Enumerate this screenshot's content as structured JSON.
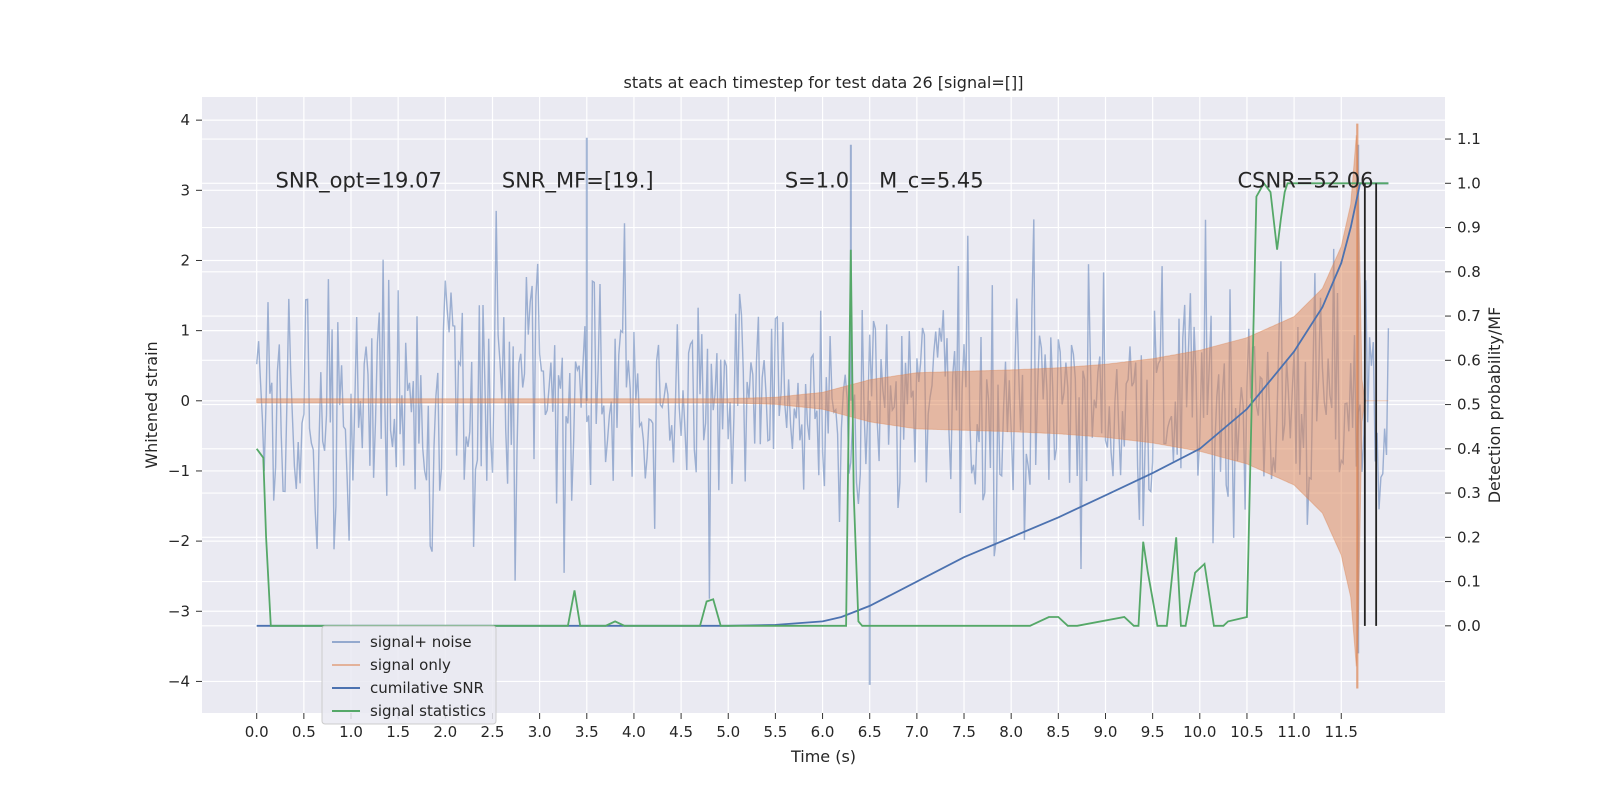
{
  "chart_data": {
    "type": "line",
    "title": "stats at each timestep for test data 26 [signal=[]]",
    "xlabel": "Time (s)",
    "ylabel": "Whitened strain",
    "ylabel_right": "Detection probability/MF",
    "xlim": [
      -0.58,
      12.6
    ],
    "ylim_left": [
      -4.45,
      4.33
    ],
    "ylim_right": [
      -0.197,
      1.195
    ],
    "x_ticks": [
      0.0,
      0.5,
      1.0,
      1.5,
      2.0,
      2.5,
      3.0,
      3.5,
      4.0,
      4.5,
      5.0,
      5.5,
      6.0,
      6.5,
      7.0,
      7.5,
      8.0,
      8.5,
      9.0,
      9.5,
      10.0,
      10.5,
      11.0,
      11.5
    ],
    "x_tick_labels": [
      "0.0",
      "0.5",
      "1.0",
      "1.5",
      "2.0",
      "2.5",
      "3.0",
      "3.5",
      "4.0",
      "4.5",
      "5.0",
      "5.5",
      "6.0",
      "6.5",
      "7.0",
      "7.5",
      "8.0",
      "8.5",
      "9.0",
      "9.5",
      "10.0",
      "10.5",
      "11.0",
      "11.5"
    ],
    "y_ticks_left": [
      4,
      3,
      2,
      1,
      0,
      -1,
      -2,
      -3,
      -4
    ],
    "y_tick_labels_left": [
      "4",
      "3",
      "2",
      "1",
      "0",
      "−1",
      "−2",
      "−3",
      "−4"
    ],
    "y_ticks_right": [
      1.1,
      1.0,
      0.9,
      0.8,
      0.7,
      0.6,
      0.5,
      0.4,
      0.3,
      0.2,
      0.1,
      0.0
    ],
    "y_tick_labels_right": [
      "1.1",
      "1.0",
      "0.9",
      "0.8",
      "0.7",
      "0.6",
      "0.5",
      "0.4",
      "0.3",
      "0.2",
      "0.1",
      "0.0"
    ],
    "grid": true,
    "legend_placement": "lower-left",
    "background": "#eaeaf2",
    "annotations": [
      {
        "text": "SNR_opt=19.07",
        "x": 0.2,
        "y": 3.1
      },
      {
        "text": "SNR_MF=[19.]",
        "x": 2.6,
        "y": 3.1
      },
      {
        "text": "S=1.0",
        "x": 5.6,
        "y": 3.1
      },
      {
        "text": "M_c=5.45",
        "x": 6.6,
        "y": 3.1
      },
      {
        "text": "CSNR=52.06",
        "x": 10.4,
        "y": 3.1
      }
    ],
    "series": [
      {
        "name": "signal+ noise",
        "axis": "left",
        "color": "#4c72b0",
        "opacity": 0.5,
        "kind": "noise-band",
        "x_range": [
          0.0,
          12.0
        ],
        "sample_spacing": 0.02,
        "typical_amplitude": 1.8,
        "peak_values": [
          {
            "x": 3.5,
            "y": 3.75
          },
          {
            "x": 6.3,
            "y": 3.65
          },
          {
            "x": 6.5,
            "y": -4.05
          },
          {
            "x": 11.68,
            "y": 3.65
          },
          {
            "x": 11.68,
            "y": -3.6
          }
        ]
      },
      {
        "name": "signal only",
        "axis": "left",
        "color": "#dd8452",
        "opacity": 0.5,
        "kind": "chirp-envelope",
        "envelope": {
          "x": [
            0.0,
            5.0,
            5.5,
            6.0,
            6.5,
            7.0,
            7.5,
            8.0,
            8.5,
            9.0,
            9.5,
            10.0,
            10.5,
            11.0,
            11.3,
            11.5,
            11.6,
            11.67,
            11.72,
            11.75,
            12.0
          ],
          "y": [
            0.03,
            0.03,
            0.05,
            0.12,
            0.3,
            0.4,
            0.42,
            0.44,
            0.47,
            0.52,
            0.6,
            0.72,
            0.9,
            1.2,
            1.6,
            2.2,
            2.8,
            3.95,
            0.3,
            0.0,
            0.0
          ]
        },
        "min_value": -4.1
      },
      {
        "name": "cumilative SNR",
        "axis": "right",
        "color": "#4c72b0",
        "x": [
          0.0,
          4.5,
          5.0,
          5.5,
          6.0,
          6.2,
          6.5,
          7.0,
          7.5,
          8.0,
          8.5,
          9.0,
          9.5,
          10.0,
          10.5,
          11.0,
          11.3,
          11.5,
          11.6,
          11.7,
          12.0
        ],
        "y": [
          0.0,
          0.0,
          0.0,
          0.002,
          0.01,
          0.02,
          0.045,
          0.1,
          0.155,
          0.2,
          0.245,
          0.295,
          0.345,
          0.4,
          0.49,
          0.62,
          0.72,
          0.82,
          0.9,
          1.0,
          1.0
        ]
      },
      {
        "name": "signal statistics",
        "axis": "right",
        "color": "#55a868",
        "x": [
          0.0,
          0.07,
          0.1,
          0.15,
          3.3,
          3.37,
          3.43,
          3.7,
          3.8,
          3.9,
          4.7,
          4.77,
          4.84,
          4.92,
          6.25,
          6.3,
          6.33,
          6.38,
          6.42,
          8.1,
          8.2,
          8.4,
          8.5,
          8.6,
          8.7,
          9.2,
          9.3,
          9.35,
          9.4,
          9.45,
          9.55,
          9.65,
          9.75,
          9.8,
          9.85,
          9.95,
          10.05,
          10.15,
          10.2,
          10.25,
          10.3,
          10.5,
          10.6,
          10.68,
          10.75,
          10.82,
          10.86,
          10.9,
          10.93,
          10.99,
          11.05,
          12.0
        ],
        "y": [
          0.4,
          0.38,
          0.2,
          0.0,
          0.0,
          0.08,
          0.0,
          0.0,
          0.01,
          0.0,
          0.0,
          0.055,
          0.06,
          0.0,
          0.0,
          0.85,
          0.3,
          0.01,
          0.0,
          0.0,
          0.0,
          0.02,
          0.02,
          0.0,
          0.0,
          0.02,
          0.0,
          0.0,
          0.19,
          0.12,
          0.0,
          0.0,
          0.2,
          0.0,
          0.0,
          0.12,
          0.14,
          0.0,
          0.0,
          0.0,
          0.01,
          0.02,
          0.97,
          1.0,
          0.98,
          0.85,
          0.92,
          0.98,
          1.0,
          1.0,
          1.0,
          1.0
        ]
      },
      {
        "name": "",
        "axis": "right",
        "color": "#222222",
        "kind": "vertical-markers",
        "x": [
          11.75,
          11.87
        ],
        "y_range": [
          0.0,
          1.0
        ]
      }
    ]
  }
}
